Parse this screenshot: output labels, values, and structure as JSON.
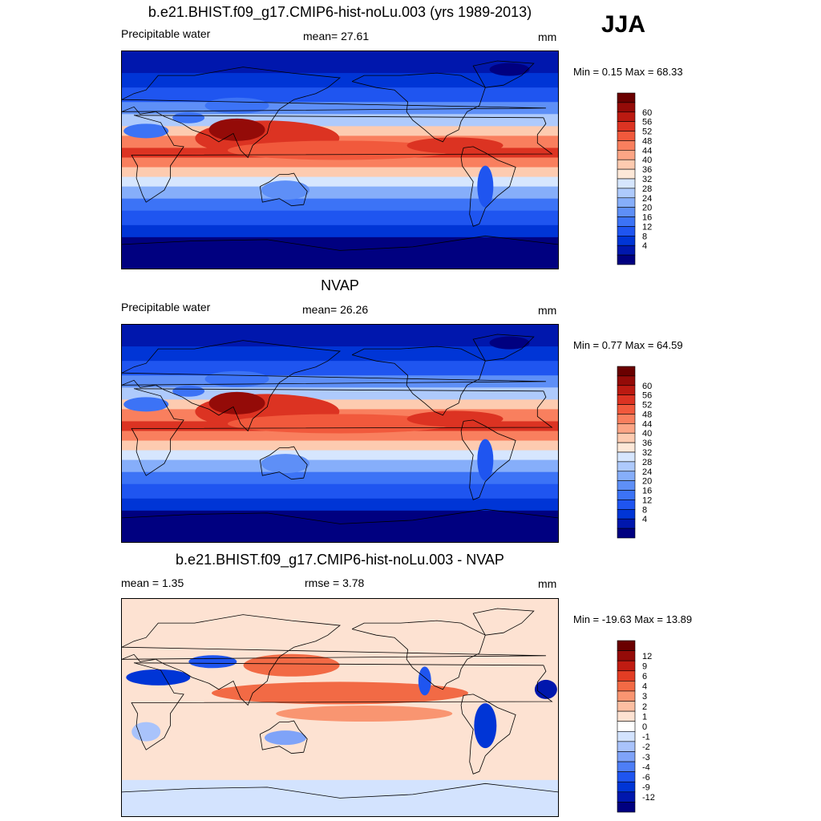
{
  "season": "JJA",
  "palette_pos": [
    "#000080",
    "#0017ad",
    "#0035d6",
    "#1f55f0",
    "#3c73f6",
    "#5e8ff7",
    "#86aefa",
    "#aecafc",
    "#d6e6fe",
    "#fde8d8",
    "#fdcbb0",
    "#fca585",
    "#f97f5e",
    "#f1593c",
    "#dc3322",
    "#bb1a11",
    "#940b08",
    "#6a0000"
  ],
  "palette_diff": [
    "#000080",
    "#0017ad",
    "#0035d6",
    "#1f55f0",
    "#4e7ef6",
    "#7fa3f8",
    "#a9c3fb",
    "#d3e3fe",
    "#ffffff",
    "#fde2d2",
    "#fcbfa2",
    "#f99571",
    "#f26a45",
    "#e23d24",
    "#c01c12",
    "#940b08",
    "#6a0000"
  ],
  "panels": [
    {
      "title": "b.e21.BHIST.f09_g17.CMIP6-hist-noLu.003 (yrs 1989-2013)",
      "left": "Precipitable water",
      "center": "mean=  27.61",
      "right": "mm",
      "minmax": "Min =   0.15 Max =  68.33",
      "ticks": [
        "60",
        "56",
        "52",
        "48",
        "44",
        "40",
        "36",
        "32",
        "28",
        "24",
        "20",
        "16",
        "12",
        "8",
        "4"
      ],
      "kind": "model"
    },
    {
      "title": "NVAP",
      "left": "Precipitable water",
      "center": "mean=  26.26",
      "right": "mm",
      "minmax": "Min =   0.77 Max =  64.59",
      "ticks": [
        "60",
        "56",
        "52",
        "48",
        "44",
        "40",
        "36",
        "32",
        "28",
        "24",
        "20",
        "16",
        "12",
        "8",
        "4"
      ],
      "kind": "obs"
    },
    {
      "title": "b.e21.BHIST.f09_g17.CMIP6-hist-noLu.003 - NVAP",
      "left": "mean =   1.35",
      "center": "rmse =   3.78",
      "right": "mm",
      "minmax": "Min = -19.63 Max =  13.89",
      "ticks": [
        "12",
        "9",
        "6",
        "4",
        "3",
        "2",
        "1",
        "0",
        "-1",
        "-2",
        "-3",
        "-4",
        "-6",
        "-9",
        "-12"
      ],
      "kind": "diff"
    }
  ]
}
